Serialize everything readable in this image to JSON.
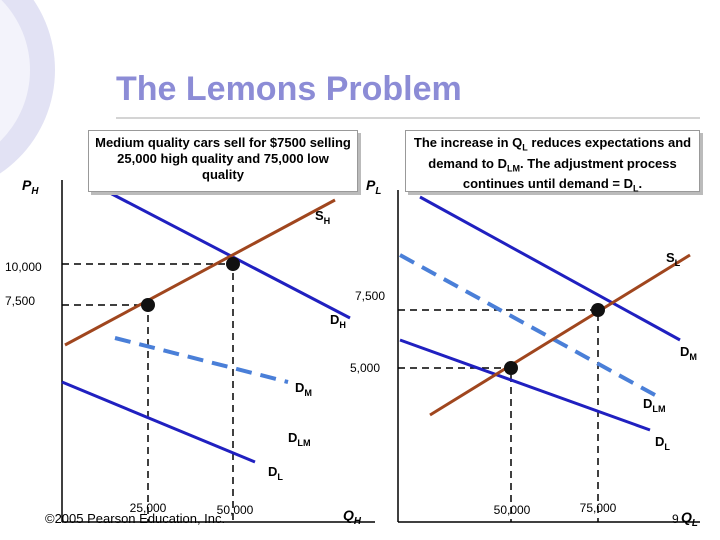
{
  "title": "The Lemons Problem",
  "left_panel": {
    "y_label": {
      "main": "P",
      "sub": "H"
    },
    "x_label": {
      "main": "Q",
      "sub": "H"
    },
    "note": "Medium quality cars sell for $7500 selling 25,000 high quality and 75,000 low quality",
    "y_ticks": [
      "10,000",
      "7,500"
    ],
    "x_ticks": [
      "25,000",
      "50,000"
    ],
    "curves": [
      {
        "main": "S",
        "sub": "H"
      },
      {
        "main": "D",
        "sub": "H"
      },
      {
        "main": "D",
        "sub": "M"
      },
      {
        "main": "D",
        "sub": "LM"
      },
      {
        "main": "D",
        "sub": "L"
      }
    ]
  },
  "right_panel": {
    "y_label": {
      "main": "P",
      "sub": "L"
    },
    "x_label": {
      "main": "Q",
      "sub": "L"
    },
    "note_runs": [
      {
        "text": "The increase in Q",
        "sub": false
      },
      {
        "text": "L",
        "sub": true
      },
      {
        "text": " reduces expectations and demand to D",
        "sub": false
      },
      {
        "text": "LM",
        "sub": true
      },
      {
        "text": ". The adjustment process continues until demand = D",
        "sub": false
      },
      {
        "text": "L",
        "sub": true
      },
      {
        "text": ".",
        "sub": false
      }
    ],
    "y_ticks": [
      "7,500",
      "5,000"
    ],
    "x_ticks": [
      "50,000",
      "75,000"
    ],
    "curves": [
      {
        "main": "S",
        "sub": "L"
      },
      {
        "main": "D",
        "sub": "M"
      },
      {
        "main": "D",
        "sub": "LM"
      },
      {
        "main": "D",
        "sub": "L"
      }
    ]
  },
  "footer": {
    "copyright": "©2005 Pearson Education, Inc.",
    "page": "9"
  }
}
